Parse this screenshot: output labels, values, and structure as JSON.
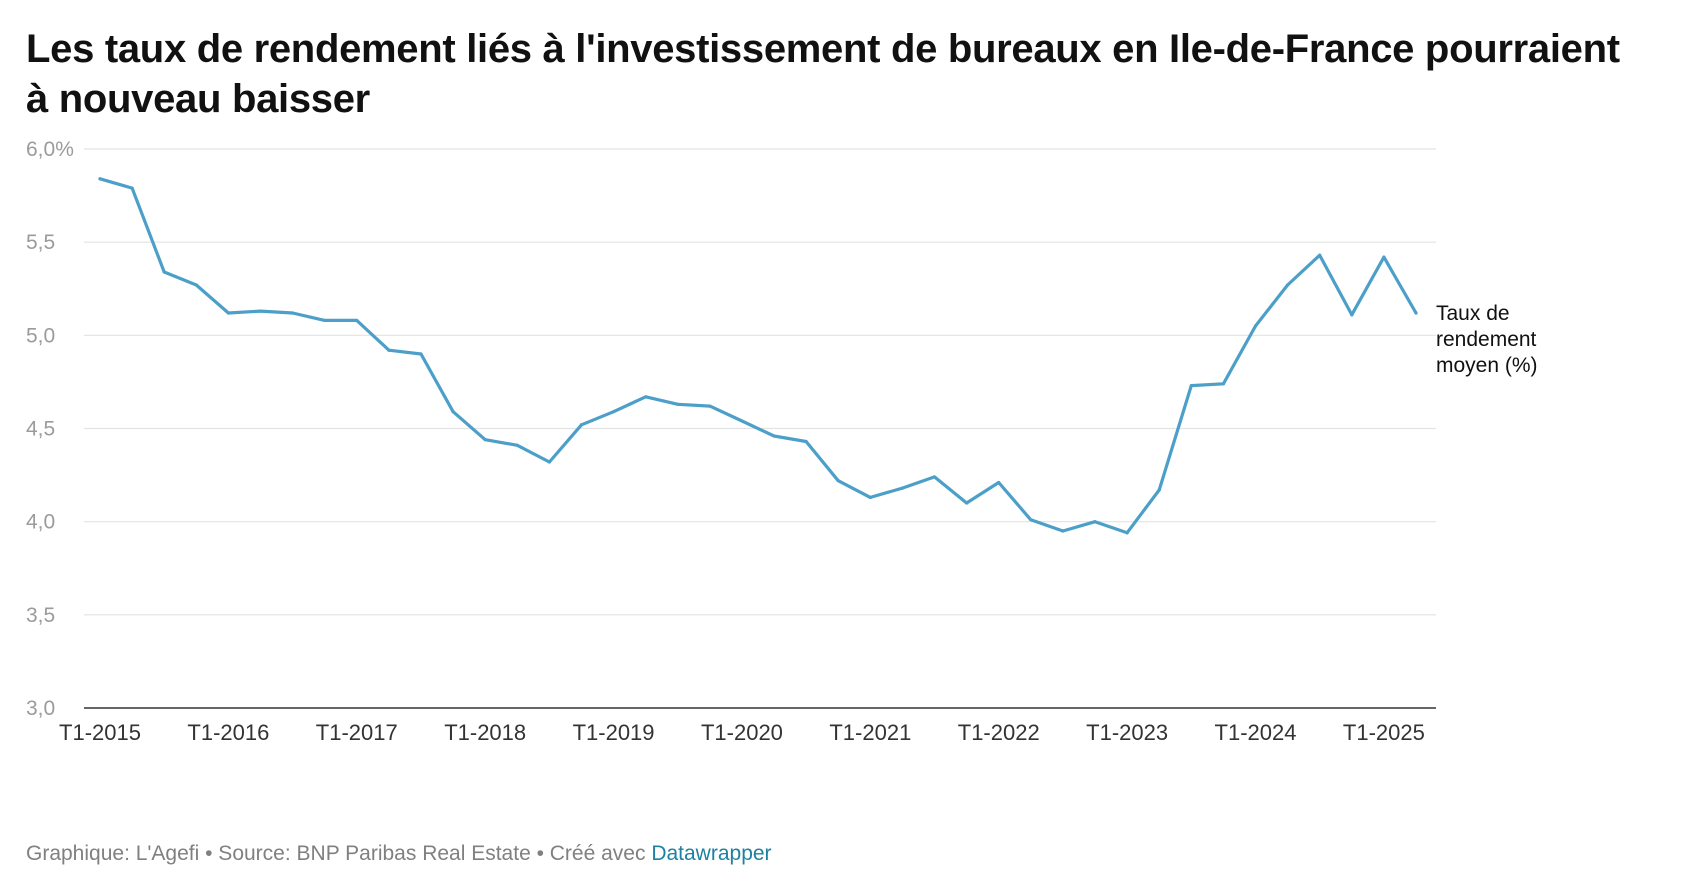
{
  "title": "Les taux de rendement liés à l'investissement de bureaux en Ile-de-France pourraient à nouveau baisser",
  "footer": {
    "prefix": "Graphique: L'Agefi • Source: BNP Paribas Real Estate • Créé avec ",
    "brand": "Datawrapper"
  },
  "colors": {
    "line": "#4c9fc8",
    "grid": "#e3e3e3",
    "brand": "#1d81a2"
  },
  "chart_data": {
    "type": "line",
    "title": "Les taux de rendement liés à l'investissement de bureaux en Ile-de-France pourraient à nouveau baisser",
    "xlabel": "",
    "ylabel": "",
    "ylim": [
      3.0,
      6.0
    ],
    "grid": true,
    "legend": "direct label at end of line (right)",
    "y_ticks": [
      {
        "value": 3.0,
        "label": "3,0"
      },
      {
        "value": 3.5,
        "label": "3,5"
      },
      {
        "value": 4.0,
        "label": "4,0"
      },
      {
        "value": 4.5,
        "label": "4,5"
      },
      {
        "value": 5.0,
        "label": "5,0"
      },
      {
        "value": 5.5,
        "label": "5,5"
      },
      {
        "value": 6.0,
        "label": "6,0%"
      }
    ],
    "x_ticks": [
      {
        "index": 0,
        "label": "T1-2015"
      },
      {
        "index": 4,
        "label": "T1-2016"
      },
      {
        "index": 8,
        "label": "T1-2017"
      },
      {
        "index": 12,
        "label": "T1-2018"
      },
      {
        "index": 16,
        "label": "T1-2019"
      },
      {
        "index": 20,
        "label": "T1-2020"
      },
      {
        "index": 24,
        "label": "T1-2021"
      },
      {
        "index": 28,
        "label": "T1-2022"
      },
      {
        "index": 32,
        "label": "T1-2023"
      },
      {
        "index": 36,
        "label": "T1-2024"
      },
      {
        "index": 40,
        "label": "T1-2025"
      }
    ],
    "series": [
      {
        "name": "Taux de rendement moyen (%)",
        "name_lines": [
          "Taux de",
          "rendement",
          "moyen (%)"
        ],
        "values": [
          5.84,
          5.79,
          5.34,
          5.27,
          5.12,
          5.13,
          5.12,
          5.08,
          5.08,
          4.92,
          4.9,
          4.59,
          4.44,
          4.41,
          4.32,
          4.52,
          4.59,
          4.67,
          4.63,
          4.62,
          4.54,
          4.46,
          4.43,
          4.22,
          4.13,
          4.18,
          4.24,
          4.1,
          4.21,
          4.01,
          3.95,
          4.0,
          3.94,
          4.17,
          4.73,
          4.74,
          5.05,
          5.27,
          5.43,
          5.11,
          5.42,
          5.12
        ]
      }
    ]
  }
}
